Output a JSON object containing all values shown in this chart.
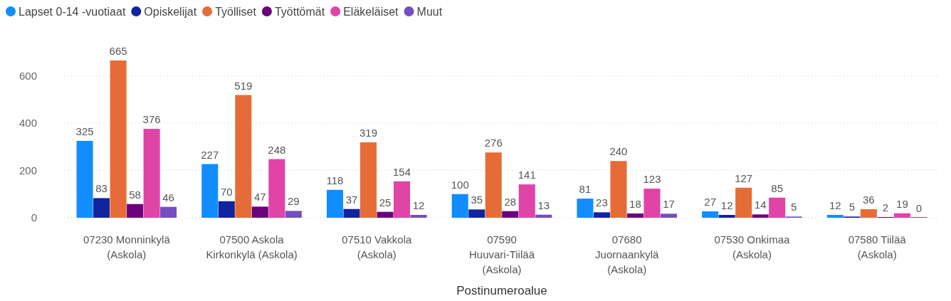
{
  "chart_data": {
    "type": "bar",
    "xlabel": "Postinumeroalue",
    "categories": [
      "07230 Monninkylä (Askola)",
      "07500 Askola Kirkonkylä (Askola)",
      "07510 Vakkola (Askola)",
      "07590 Huuvari-Tiilää (Askola)",
      "07680 Juornaankylä (Askola)",
      "07530 Onkimaa (Askola)",
      "07580 Tiilää (Askola)"
    ],
    "series": [
      {
        "name": "Lapset 0-14 -vuotiaat",
        "color": "#118dff",
        "values": [
          325,
          227,
          118,
          100,
          81,
          27,
          12
        ]
      },
      {
        "name": "Opiskelijat",
        "color": "#12239e",
        "values": [
          83,
          70,
          37,
          35,
          23,
          12,
          5
        ]
      },
      {
        "name": "Työlliset",
        "color": "#e66c37",
        "values": [
          665,
          519,
          319,
          276,
          240,
          127,
          36
        ]
      },
      {
        "name": "Työttömät",
        "color": "#6b007b",
        "values": [
          58,
          47,
          25,
          28,
          18,
          14,
          2
        ]
      },
      {
        "name": "Eläkeläiset",
        "color": "#e044a7",
        "values": [
          376,
          248,
          154,
          141,
          123,
          85,
          19
        ]
      },
      {
        "name": "Muut",
        "color": "#744ec2",
        "values": [
          46,
          29,
          12,
          13,
          17,
          5,
          0
        ]
      }
    ],
    "ylim": [
      0,
      665
    ],
    "yticks": [
      0,
      200,
      400,
      600
    ],
    "grid": "y",
    "legend": "top left",
    "data_labels": true
  }
}
